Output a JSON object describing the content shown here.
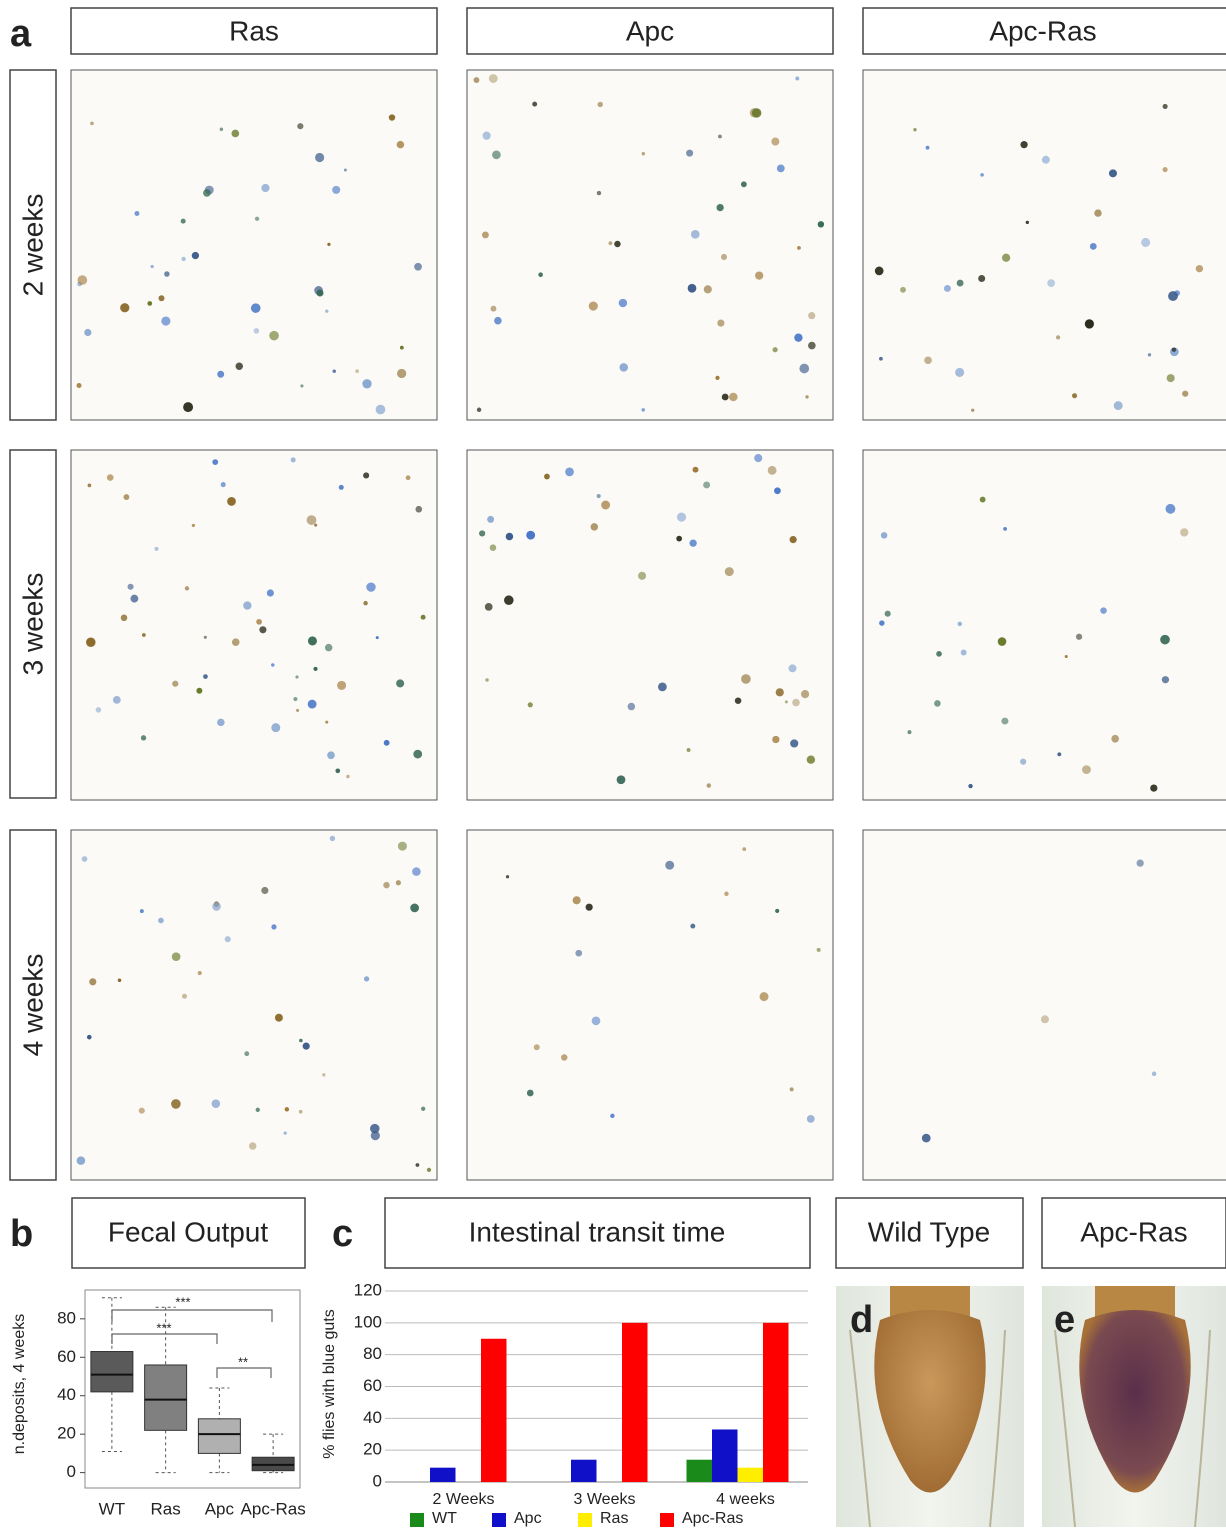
{
  "panel_labels": [
    "a",
    "b",
    "c",
    "d",
    "e"
  ],
  "column_headers": [
    "Ras",
    "Apc",
    "Apc-Ras"
  ],
  "row_headers": [
    "2 weeks",
    "3 weeks",
    "4 weeks"
  ],
  "photo_headers": [
    "Wild Type",
    "Apc-Ras"
  ],
  "chart_data": [
    {
      "type": "box",
      "title": "Fecal Output",
      "ylabel": "n.deposits, 4 weeks",
      "categories": [
        "WT",
        "Ras",
        "Apc",
        "Apc-Ras"
      ],
      "boxes": [
        {
          "min": 11,
          "q1": 42,
          "median": 51,
          "q3": 63,
          "max": 91
        },
        {
          "min": 0,
          "q1": 22,
          "median": 38,
          "q3": 56,
          "max": 86
        },
        {
          "min": 0,
          "q1": 10,
          "median": 20,
          "q3": 28,
          "max": 44
        },
        {
          "min": 0,
          "q1": 1,
          "median": 4,
          "q3": 8,
          "max": 20
        }
      ],
      "colors": [
        "#5a5a5a",
        "#808080",
        "#b0b0b0",
        "#4a4a4a"
      ],
      "ylim": [
        -8,
        95
      ],
      "yticks": [
        0,
        20,
        40,
        60,
        80
      ],
      "annotations": [
        "***",
        "***",
        "**"
      ]
    },
    {
      "type": "bar",
      "title": "Intestinal transit time",
      "ylabel": "% flies with blue guts",
      "categories": [
        "2 Weeks",
        "3 Weeks",
        "4 weeks"
      ],
      "series": [
        {
          "name": "WT",
          "color": "#1a8a1a",
          "values": [
            0,
            0,
            14
          ]
        },
        {
          "name": "Apc",
          "color": "#1010c8",
          "values": [
            9,
            14,
            33
          ]
        },
        {
          "name": "Ras",
          "color": "#ffee00",
          "values": [
            0,
            0,
            9
          ]
        },
        {
          "name": "Apc-Ras",
          "color": "#ff0000",
          "values": [
            90,
            100,
            100
          ]
        }
      ],
      "ylim": [
        0,
        120
      ],
      "yticks": [
        0,
        20,
        40,
        60,
        80,
        100,
        120
      ],
      "grid": true
    }
  ]
}
